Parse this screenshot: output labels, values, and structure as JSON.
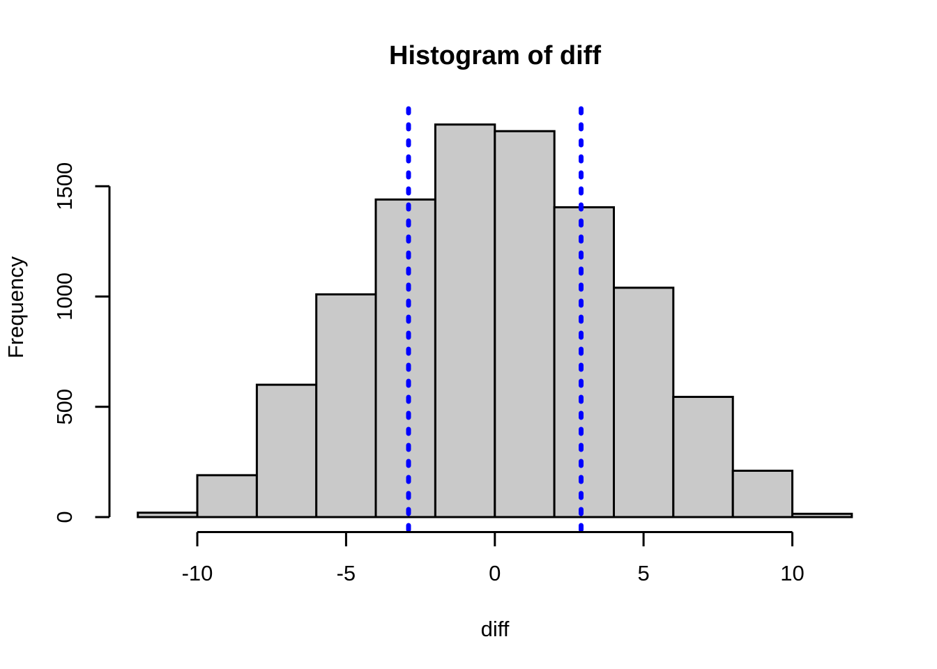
{
  "figure": {
    "background": "#FFFFFF",
    "text_color": "#000000"
  },
  "chart_data": {
    "type": "bar",
    "variant": "histogram",
    "title": "Histogram of diff",
    "xlabel": "diff",
    "ylabel": "Frequency",
    "bin_edges": [
      -12,
      -10,
      -8,
      -6,
      -4,
      -2,
      0,
      2,
      4,
      6,
      8,
      10,
      12
    ],
    "counts": [
      20,
      190,
      600,
      1010,
      1440,
      1780,
      1750,
      1405,
      1040,
      545,
      210,
      15
    ],
    "x_tick_values": [
      -10,
      -5,
      0,
      5,
      10
    ],
    "x_tick_labels": [
      "-10",
      "-5",
      "0",
      "5",
      "10"
    ],
    "y_tick_values": [
      0,
      500,
      1000,
      1500
    ],
    "y_tick_labels": [
      "0",
      "500",
      "1000",
      "1500"
    ],
    "xlim": [
      -12.6,
      12.6
    ],
    "ylim": [
      0,
      1850
    ],
    "grid": false,
    "legend": null,
    "bar_fill": "#C9C9C9",
    "bar_stroke": "#000000",
    "axis_color": "#000000",
    "vlines": [
      {
        "x": -2.9,
        "color": "#0000FF",
        "style": "dotted"
      },
      {
        "x": 2.9,
        "color": "#0000FF",
        "style": "dotted"
      }
    ]
  }
}
